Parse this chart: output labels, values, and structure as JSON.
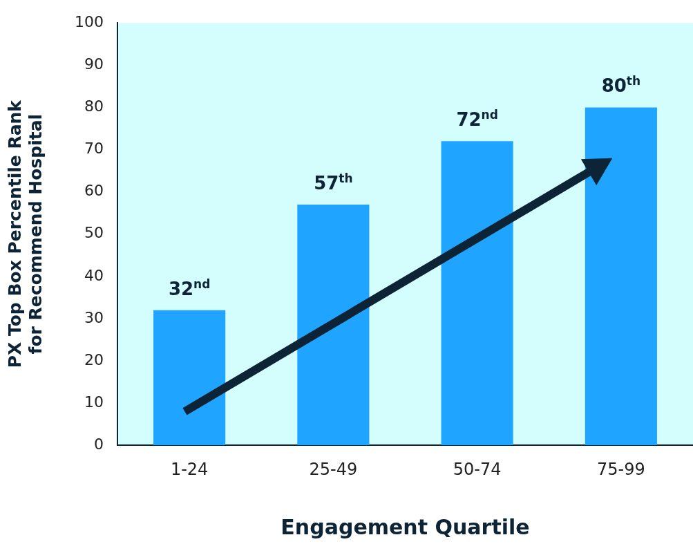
{
  "chart_data": {
    "type": "bar",
    "xlabel": "Engagement Quartile",
    "ylabel": "PX Top Box Percentile Rank for Recommend Hospital",
    "categories": [
      "1-24",
      "25-49",
      "50-74",
      "75-99"
    ],
    "values": [
      32,
      57,
      72,
      80
    ],
    "value_labels": [
      "32$^{nd}$",
      "57$^{th}$",
      "72$^{nd}$",
      "80$^{th}$"
    ],
    "color": "#1fa5ff",
    "ylim": [
      0,
      100
    ],
    "yticks": [
      0,
      10,
      20,
      30,
      40,
      50,
      60,
      70,
      80,
      90,
      100
    ],
    "grid": false,
    "legend": false
  }
}
